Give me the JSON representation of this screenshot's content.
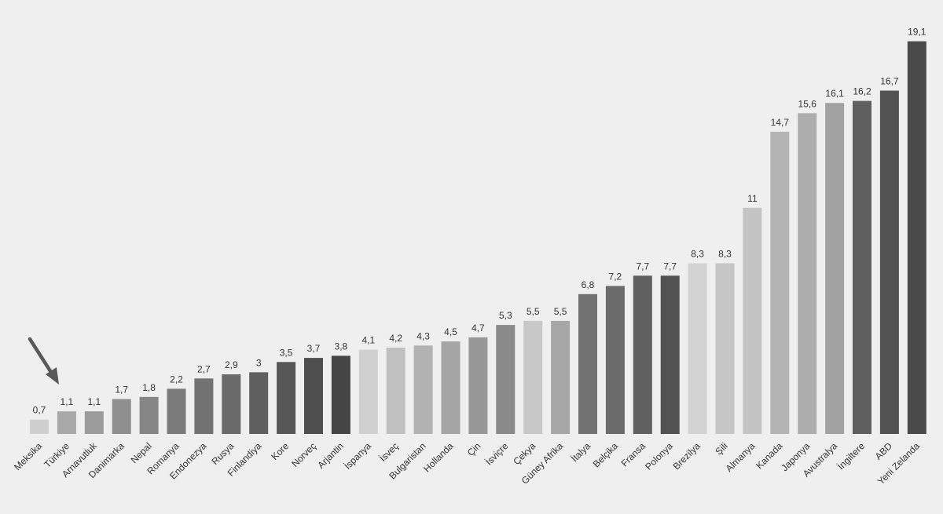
{
  "chart_data": {
    "type": "bar",
    "title": "",
    "xlabel": "",
    "ylabel": "",
    "ylim": [
      0,
      20
    ],
    "grid": false,
    "legend": "none",
    "categories": [
      "Meksika",
      "Türkiye",
      "Arnavutluk",
      "Danimarka",
      "Nepal",
      "Romanya",
      "Endonezya",
      "Rusya",
      "Finlandiya",
      "Kore",
      "Norveç",
      "Arjantin",
      "İspanya",
      "İsveç",
      "Bulgaristan",
      "Hollanda",
      "Çin",
      "İsviçre",
      "Çekya",
      "Güney Afrika",
      "İtalya",
      "Belçika",
      "Fransa",
      "Polonya",
      "Brezilya",
      "Şili",
      "Almanya",
      "Kanada",
      "Japonya",
      "Avustralya",
      "İngiltere",
      "ABD",
      "Yeni Zelanda"
    ],
    "values": [
      0.7,
      1.1,
      1.1,
      1.7,
      1.8,
      2.2,
      2.7,
      2.9,
      3,
      3.5,
      3.7,
      3.8,
      4.1,
      4.2,
      4.3,
      4.5,
      4.7,
      5.3,
      5.5,
      5.5,
      6.8,
      7.2,
      7.7,
      7.7,
      8.3,
      8.3,
      11,
      14.7,
      15.6,
      16.1,
      16.2,
      16.7,
      19.1
    ],
    "value_labels": [
      "0,7",
      "1,1",
      "1,1",
      "1,7",
      "1,8",
      "2,2",
      "2,7",
      "2,9",
      "3",
      "3,5",
      "3,7",
      "3,8",
      "4,1",
      "4,2",
      "4,3",
      "4,5",
      "4,7",
      "5,3",
      "5,5",
      "5,5",
      "6,8",
      "7,2",
      "7,7",
      "7,7",
      "8,3",
      "8,3",
      "11",
      "14,7",
      "15,6",
      "16,1",
      "16,2",
      "16,7",
      "19,1"
    ],
    "bar_colors": [
      "#cfcfcf",
      "#a9a9a9",
      "#9b9b9b",
      "#8f8f8f",
      "#858585",
      "#7b7b7b",
      "#727272",
      "#6a6a6a",
      "#5f5f5f",
      "#575757",
      "#4e4e4e",
      "#454545",
      "#d0d0d0",
      "#c0c0c0",
      "#b2b2b2",
      "#a5a5a5",
      "#989898",
      "#8a8a8a",
      "#c8c8c8",
      "#a7a7a7",
      "#727272",
      "#6b6b6b",
      "#606060",
      "#525252",
      "#d3d3d3",
      "#c6c6c6",
      "#c4c4c4",
      "#b4b4b4",
      "#adadad",
      "#a2a2a2",
      "#5f5f5f",
      "#525252",
      "#4a4a4a"
    ],
    "highlight_index": 1,
    "arrow_color": "#595959"
  }
}
